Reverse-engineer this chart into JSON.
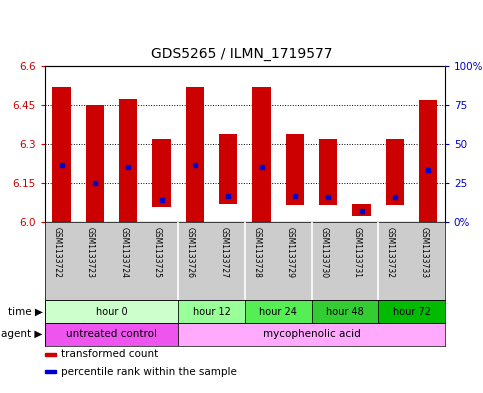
{
  "title": "GDS5265 / ILMN_1719577",
  "samples": [
    "GSM1133722",
    "GSM1133723",
    "GSM1133724",
    "GSM1133725",
    "GSM1133726",
    "GSM1133727",
    "GSM1133728",
    "GSM1133729",
    "GSM1133730",
    "GSM1133731",
    "GSM1133732",
    "GSM1133733"
  ],
  "bar_tops": [
    6.52,
    6.45,
    6.475,
    6.32,
    6.52,
    6.34,
    6.52,
    6.34,
    6.32,
    6.07,
    6.32,
    6.47
  ],
  "bar_bottoms": [
    6.0,
    6.0,
    6.0,
    6.055,
    6.0,
    6.07,
    6.0,
    6.065,
    6.065,
    6.02,
    6.065,
    6.0
  ],
  "blue_positions": [
    6.22,
    6.15,
    6.21,
    6.085,
    6.22,
    6.1,
    6.21,
    6.1,
    6.095,
    6.04,
    6.095,
    6.2
  ],
  "ylim": [
    6.0,
    6.6
  ],
  "yticks_left": [
    6.0,
    6.15,
    6.3,
    6.45,
    6.6
  ],
  "yticks_right": [
    0,
    25,
    50,
    75,
    100
  ],
  "ytick_labels_right": [
    "0%",
    "25",
    "50",
    "75",
    "100%"
  ],
  "grid_lines": [
    6.15,
    6.3,
    6.45,
    6.6
  ],
  "bar_color": "#cc0000",
  "blue_color": "#0000cc",
  "bar_width": 0.55,
  "time_groups": [
    {
      "label": "hour 0",
      "start": 0,
      "end": 3,
      "color": "#ccffcc"
    },
    {
      "label": "hour 12",
      "start": 4,
      "end": 5,
      "color": "#99ff99"
    },
    {
      "label": "hour 24",
      "start": 6,
      "end": 7,
      "color": "#55ee55"
    },
    {
      "label": "hour 48",
      "start": 8,
      "end": 9,
      "color": "#33cc33"
    },
    {
      "label": "hour 72",
      "start": 10,
      "end": 11,
      "color": "#00bb00"
    }
  ],
  "agent_groups": [
    {
      "label": "untreated control",
      "start": 0,
      "end": 3,
      "color": "#ee55ee"
    },
    {
      "label": "mycophenolic acid",
      "start": 4,
      "end": 11,
      "color": "#ffaaff"
    }
  ],
  "legend_items": [
    {
      "label": "transformed count",
      "color": "#cc0000"
    },
    {
      "label": "percentile rank within the sample",
      "color": "#0000cc"
    }
  ],
  "bg_color": "#ffffff",
  "plot_bg_color": "#ffffff",
  "sample_bg_color": "#cccccc",
  "font_color_left": "#cc0000",
  "font_color_right": "#0000cc"
}
